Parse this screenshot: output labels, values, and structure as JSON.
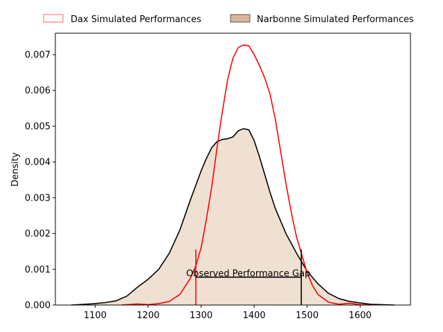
{
  "chart_data": {
    "type": "area",
    "title": "",
    "xlabel": "",
    "ylabel": "Density",
    "xlim": [
      1025,
      1695
    ],
    "ylim": [
      0,
      0.0076
    ],
    "xticks": [
      1100,
      1200,
      1300,
      1400,
      1500,
      1600
    ],
    "yticks": [
      0.0,
      0.001,
      0.002,
      0.003,
      0.004,
      0.005,
      0.006,
      0.007
    ],
    "ytick_format": "0.000",
    "legend": {
      "placement": "top-center, above plot",
      "entries": [
        {
          "label": "Dax Simulated Performances",
          "edge_color": "#ff0000",
          "fill_color": "#ffffff",
          "fill_alpha": 0.5
        },
        {
          "label": "Narbonne Simulated Performances",
          "edge_color": "#000000",
          "fill_color": "#d2a57e",
          "fill_alpha": 0.8
        }
      ]
    },
    "series": [
      {
        "name": "Dax Simulated Performances",
        "color": "#ff0000",
        "fill": "#ffffff",
        "x": [
          1150,
          1180,
          1200,
          1220,
          1240,
          1260,
          1280,
          1290,
          1300,
          1310,
          1320,
          1330,
          1340,
          1350,
          1360,
          1370,
          1380,
          1390,
          1400,
          1410,
          1420,
          1430,
          1440,
          1450,
          1460,
          1470,
          1480,
          1490,
          1500,
          1510,
          1520,
          1540,
          1560,
          1580,
          1600,
          1620
        ],
        "y": [
          0.0,
          3e-05,
          1e-05,
          4e-05,
          0.0001,
          0.0003,
          0.00075,
          0.0011,
          0.0016,
          0.0024,
          0.0033,
          0.0044,
          0.0054,
          0.0063,
          0.0069,
          0.0072,
          0.00727,
          0.00725,
          0.007,
          0.0067,
          0.00635,
          0.0059,
          0.0052,
          0.0043,
          0.0034,
          0.0026,
          0.0019,
          0.0014,
          0.0009,
          0.00055,
          0.0003,
          8e-05,
          2e-05,
          5e-05,
          1e-05,
          0.0
        ]
      },
      {
        "name": "Narbonne Simulated Performances",
        "color": "#000000",
        "fill": "#d2a57e",
        "x": [
          1055,
          1080,
          1100,
          1120,
          1140,
          1160,
          1180,
          1200,
          1220,
          1240,
          1260,
          1280,
          1300,
          1310,
          1320,
          1330,
          1340,
          1350,
          1360,
          1370,
          1380,
          1390,
          1400,
          1410,
          1420,
          1430,
          1440,
          1460,
          1480,
          1500,
          1520,
          1540,
          1560,
          1580,
          1600,
          1620,
          1640,
          1665
        ],
        "y": [
          0.0,
          2e-05,
          4e-05,
          7e-05,
          0.00012,
          0.00025,
          0.0005,
          0.00072,
          0.001,
          0.00145,
          0.0021,
          0.00295,
          0.00375,
          0.0041,
          0.0044,
          0.00457,
          0.00463,
          0.00465,
          0.0047,
          0.00487,
          0.00493,
          0.0049,
          0.0046,
          0.00415,
          0.00365,
          0.00315,
          0.0027,
          0.002,
          0.00145,
          0.00095,
          0.0006,
          0.00033,
          0.00018,
          0.0001,
          6e-05,
          2e-05,
          1e-05,
          0.0
        ]
      }
    ],
    "annotations": [
      {
        "type": "vline",
        "x": 1290,
        "y0": 0,
        "y1": 0.00155,
        "color": "#ff0000"
      },
      {
        "type": "vline",
        "x": 1489,
        "y0": 0,
        "y1": 0.00155,
        "color": "#000000"
      },
      {
        "type": "hline",
        "y": 0.00078,
        "x0": 1290,
        "x1": 1489,
        "color": "#000000"
      },
      {
        "type": "text",
        "text": "Observed Performance Gap",
        "x": 1389,
        "y": 0.00078
      }
    ]
  }
}
